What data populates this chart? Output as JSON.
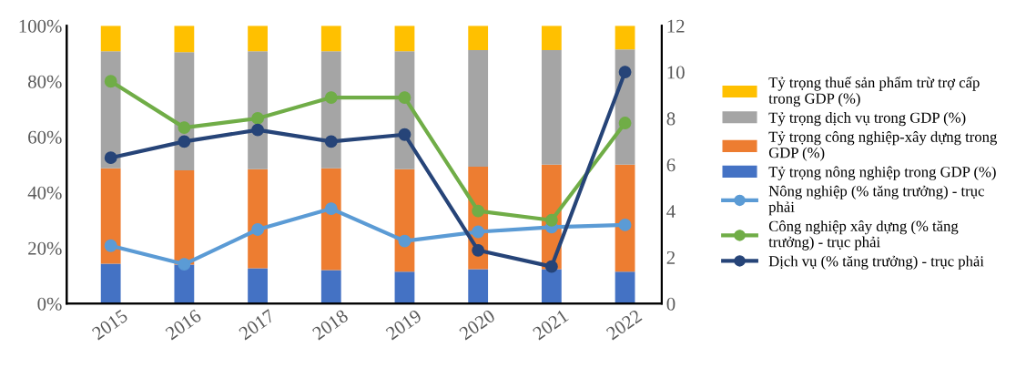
{
  "chart_data": {
    "type": "bar",
    "stacked": true,
    "categories": [
      "2015",
      "2016",
      "2017",
      "2018",
      "2019",
      "2020",
      "2021",
      "2022"
    ],
    "series": [
      {
        "name": "Tỷ trọng nông nghiệp trong GDP (%)",
        "color": "#4472c4",
        "values": [
          14.4,
          14.0,
          12.7,
          12.1,
          11.5,
          12.4,
          12.4,
          11.5
        ]
      },
      {
        "name": "Tỷ trọng công nghiệp-xây dựng trong GDP (%)",
        "color": "#ed7d31",
        "values": [
          34.3,
          34.0,
          35.7,
          36.6,
          36.9,
          36.9,
          37.6,
          38.5
        ]
      },
      {
        "name": "Tỷ trọng dịch vụ trong GDP (%)",
        "color": "#a5a5a5",
        "values": [
          42.1,
          42.5,
          42.4,
          42.1,
          42.4,
          41.9,
          41.2,
          41.5
        ]
      },
      {
        "name": "Tỷ trọng thuế sản phẩm trừ trợ cấp trong GDP (%)",
        "color": "#ffc000",
        "values": [
          9.2,
          9.5,
          9.2,
          9.2,
          9.2,
          8.8,
          8.8,
          8.5
        ]
      },
      {
        "name": "Nông nghiệp (% tăng trưởng) - trục phải",
        "type": "line",
        "axis": "y2",
        "color": "#5b9bd5",
        "values": [
          2.5,
          1.7,
          3.2,
          4.1,
          2.7,
          3.1,
          3.3,
          3.4
        ]
      },
      {
        "name": "Công nghiệp xây dựng (% tăng trưởng) - trục phải",
        "type": "line",
        "axis": "y2",
        "color": "#70ad47",
        "values": [
          9.6,
          7.6,
          8.0,
          8.9,
          8.9,
          4.0,
          3.6,
          7.8
        ]
      },
      {
        "name": "Dịch vụ (% tăng trưởng) - trục phải",
        "type": "line",
        "axis": "y2",
        "color": "#264478",
        "values": [
          6.3,
          7.0,
          7.5,
          7.0,
          7.3,
          2.3,
          1.6,
          10.0
        ]
      }
    ],
    "ylim": [
      0,
      100
    ],
    "yticks": [
      {
        "value": 0,
        "label": "0%"
      },
      {
        "value": 20,
        "label": "20%"
      },
      {
        "value": 40,
        "label": "40%"
      },
      {
        "value": 60,
        "label": "60%"
      },
      {
        "value": 80,
        "label": "80%"
      },
      {
        "value": 100,
        "label": "100%"
      }
    ],
    "y2lim": [
      0,
      12
    ],
    "y2ticks": [
      0,
      2,
      4,
      6,
      8,
      10,
      12
    ],
    "marker": "circle",
    "line_style": "solid",
    "grid": false,
    "legend": "right"
  }
}
